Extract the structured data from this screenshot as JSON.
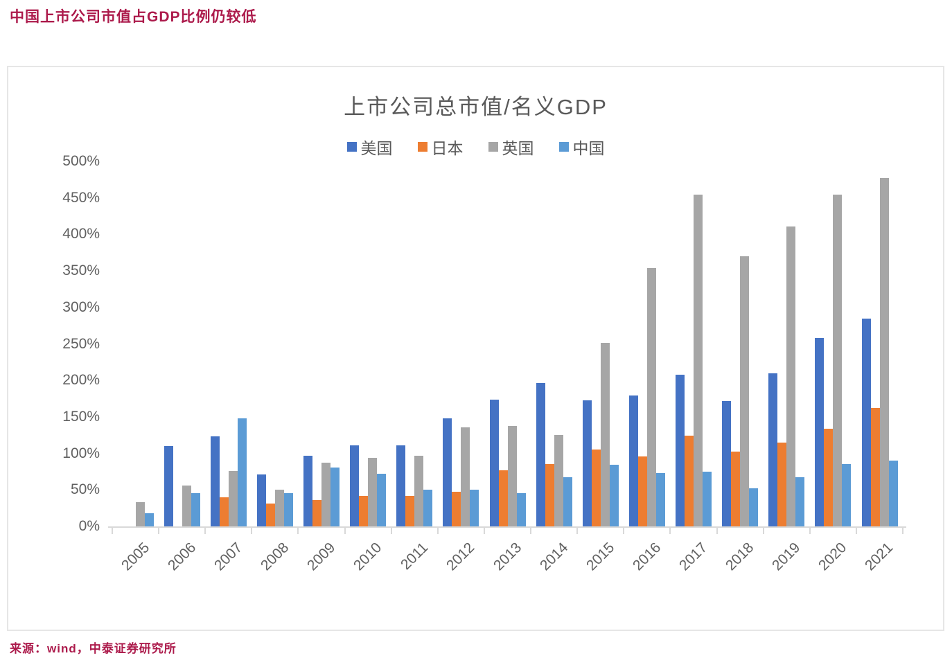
{
  "header": {
    "title": "中国上市公司市值占GDP比例仍较低"
  },
  "footer": {
    "source": "来源：wind，中泰证券研究所"
  },
  "colors": {
    "accent_text": "#AC1A4B",
    "axis_text": "#595959",
    "axis_line": "#D9D9D9",
    "series_us": "#4472C4",
    "series_jp": "#ED7D31",
    "series_uk": "#A6A6A6",
    "series_cn": "#5B9BD5"
  },
  "chart_data": {
    "type": "bar",
    "title": "上市公司总市值/名义GDP",
    "xlabel": "",
    "ylabel": "",
    "ylim": [
      0,
      500
    ],
    "ytick_step": 50,
    "ytick_suffix": "%",
    "grid": false,
    "legend_position": "top-center",
    "categories": [
      "2005",
      "2006",
      "2007",
      "2008",
      "2009",
      "2010",
      "2011",
      "2012",
      "2013",
      "2014",
      "2015",
      "2016",
      "2017",
      "2018",
      "2019",
      "2020",
      "2021"
    ],
    "series": [
      {
        "name": "美国",
        "key": "us",
        "color": "#4472C4",
        "pattern": "solid",
        "values": [
          null,
          110,
          123,
          71,
          97,
          111,
          111,
          148,
          174,
          196,
          173,
          179,
          208,
          172,
          210,
          258,
          285
        ]
      },
      {
        "name": "日本",
        "key": "jp",
        "color": "#ED7D31",
        "pattern": "solid",
        "values": [
          null,
          null,
          40,
          31,
          36,
          42,
          42,
          47,
          77,
          85,
          105,
          96,
          124,
          102,
          115,
          134,
          162
        ]
      },
      {
        "name": "英国",
        "key": "uk",
        "color": "#A6A6A6",
        "pattern": "dots",
        "values": [
          33,
          56,
          76,
          50,
          87,
          94,
          97,
          136,
          138,
          125,
          251,
          354,
          454,
          370,
          411,
          454,
          477
        ]
      },
      {
        "name": "中国",
        "key": "cn",
        "color": "#5B9BD5",
        "pattern": "dots-light",
        "values": [
          18,
          46,
          148,
          46,
          81,
          72,
          50,
          50,
          46,
          67,
          84,
          73,
          75,
          52,
          67,
          85,
          90
        ]
      }
    ]
  }
}
